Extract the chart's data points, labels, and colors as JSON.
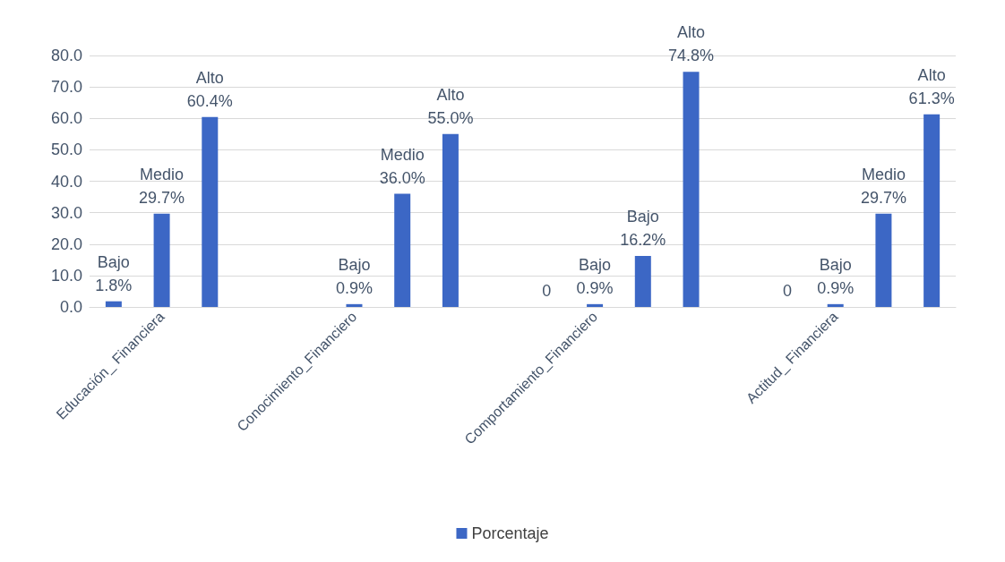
{
  "chart_data": {
    "type": "bar",
    "categories": [
      null,
      "Educación_ Financiera",
      null,
      null,
      null,
      "Conocimiento_Financiero",
      null,
      null,
      null,
      null,
      "Comportamiento_Financiero",
      null,
      null,
      null,
      null,
      "Actitud_ Financiera",
      null,
      null
    ],
    "series": [
      {
        "name": "Porcentaje",
        "color": "#3c67c5",
        "values": [
          1.8,
          29.7,
          60.4,
          null,
          0,
          0.9,
          36.0,
          55.0,
          null,
          0,
          0.9,
          16.2,
          74.8,
          null,
          0,
          0.9,
          29.7,
          61.3
        ],
        "value_labels": [
          "Bajo\n1.8%",
          "Medio\n29.7%",
          "Alto\n60.4%",
          null,
          null,
          "Bajo\n0.9%",
          "Medio\n36.0%",
          "Alto\n55.0%",
          null,
          "0",
          "Bajo\n0.9%",
          "Bajo\n16.2%",
          "Alto\n74.8%",
          null,
          "0",
          "Bajo\n0.9%",
          "Medio\n29.7%",
          "Alto\n61.3%"
        ]
      }
    ],
    "ylim": [
      0,
      80
    ],
    "yticks": [
      {
        "value": 0,
        "label": "0.0"
      },
      {
        "value": 10,
        "label": "10.0"
      },
      {
        "value": 20,
        "label": "20.0"
      },
      {
        "value": 30,
        "label": "30.0"
      },
      {
        "value": 40,
        "label": "40.0"
      },
      {
        "value": 50,
        "label": "50.0"
      },
      {
        "value": 60,
        "label": "60.0"
      },
      {
        "value": 70,
        "label": "70.0"
      },
      {
        "value": 80,
        "label": "80.0"
      }
    ],
    "grid": true,
    "legend": "bottom"
  }
}
